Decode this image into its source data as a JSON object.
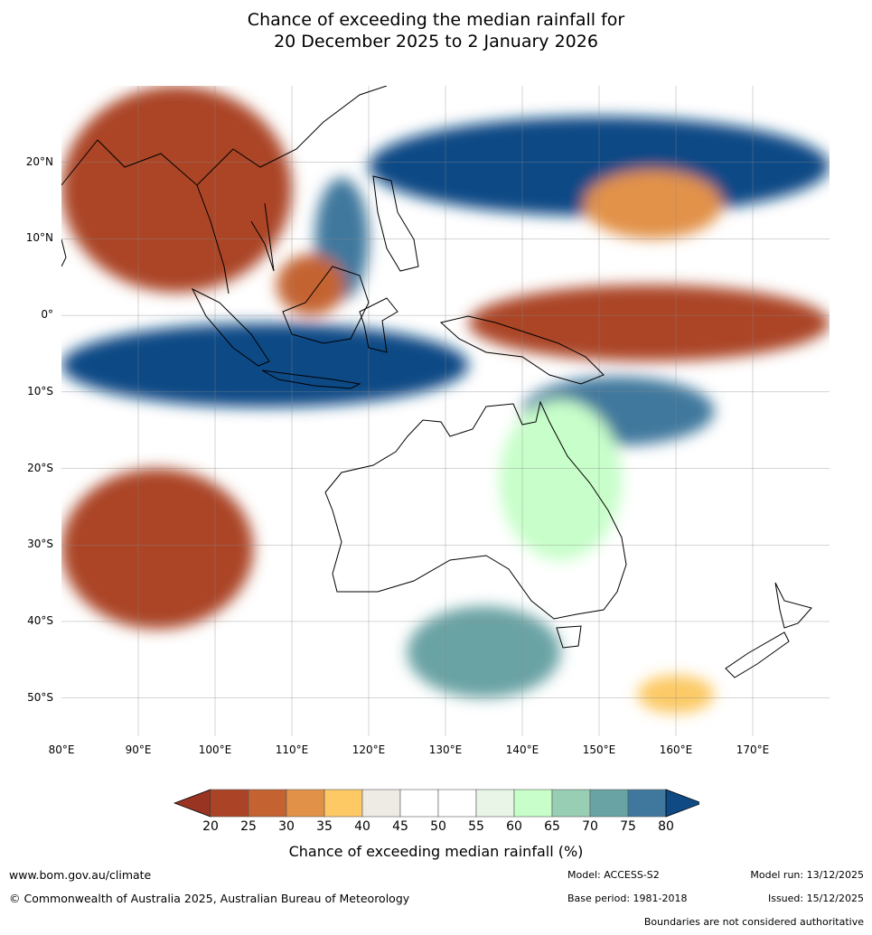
{
  "title": {
    "line1": "Chance of exceeding the median rainfall for",
    "line2": "20 December 2025 to 2 January 2026"
  },
  "map": {
    "lat_labels": [
      "20°N",
      "10°N",
      "0°",
      "10°S",
      "20°S",
      "30°S",
      "40°S",
      "50°S"
    ],
    "lon_labels": [
      "80°E",
      "90°E",
      "100°E",
      "110°E",
      "120°E",
      "130°E",
      "140°E",
      "150°E",
      "160°E",
      "170°E"
    ],
    "extent": {
      "lon": [
        80,
        180
      ],
      "lat": [
        -55,
        30
      ]
    },
    "regions": [
      {
        "name": "western-north-pacific-wet",
        "category": 80,
        "lon": [
          120,
          180
        ],
        "lat": [
          13,
          26
        ]
      },
      {
        "name": "south-china-sea-wet",
        "category": 75,
        "lon": [
          113,
          120
        ],
        "lat": [
          2,
          18
        ]
      },
      {
        "name": "northeast-pacific-dry-band",
        "category": 30,
        "lon": [
          148,
          166
        ],
        "lat": [
          10,
          19
        ]
      },
      {
        "name": "western-pacific-equatorial-dry",
        "category": 20,
        "lon": [
          133,
          180
        ],
        "lat": [
          -6,
          4
        ]
      },
      {
        "name": "indian-ocean-equatorial-wet",
        "category": 80,
        "lon": [
          80,
          133
        ],
        "lat": [
          -12,
          -1
        ]
      },
      {
        "name": "northwest-dry",
        "category": 20,
        "lon": [
          80,
          110
        ],
        "lat": [
          3,
          30
        ]
      },
      {
        "name": "borneo-dry",
        "category": 25,
        "lon": [
          108,
          117
        ],
        "lat": [
          0,
          8
        ]
      },
      {
        "name": "southwest-indian-ocean-dry",
        "category": 20,
        "lon": [
          80,
          105
        ],
        "lat": [
          -41,
          -20
        ]
      },
      {
        "name": "coral-sea-wet",
        "category": 75,
        "lon": [
          140,
          165
        ],
        "lat": [
          -17,
          -8
        ]
      },
      {
        "name": "australia-east-wet",
        "category": 60,
        "lon": [
          137,
          153
        ],
        "lat": [
          -32,
          -11
        ]
      },
      {
        "name": "southern-ocean-wet",
        "category": 70,
        "lon": [
          125,
          145
        ],
        "lat": [
          -50,
          -38
        ]
      },
      {
        "name": "tasman-dry",
        "category": 35,
        "lon": [
          155,
          165
        ],
        "lat": [
          -52,
          -47
        ]
      }
    ]
  },
  "colorbar": {
    "title": "Chance of exceeding median rainfall (%)",
    "ticks": [
      "20",
      "25",
      "30",
      "35",
      "40",
      "45",
      "50",
      "55",
      "60",
      "65",
      "70",
      "75",
      "80"
    ],
    "colors": [
      "#993322",
      "#ab4427",
      "#c46331",
      "#e29248",
      "#fcc965",
      "#eeebe4",
      "#ffffff",
      "#ffffff",
      "#e9f6e7",
      "#c7fec9",
      "#98ceb3",
      "#6aa3a4",
      "#40789d",
      "#0f4a85"
    ],
    "low_color": "#993322",
    "high_color": "#0f4a85"
  },
  "footer": {
    "website": "www.bom.gov.au/climate",
    "copyright": "© Commonwealth of Australia 2025, Australian Bureau of Meteorology",
    "model": "Model: ACCESS-S2",
    "base_period": "Base period: 1981-2018",
    "model_run": "Model run: 13/12/2025",
    "issued": "Issued: 15/12/2025",
    "disclaimer": "Boundaries are not considered authoritative"
  }
}
